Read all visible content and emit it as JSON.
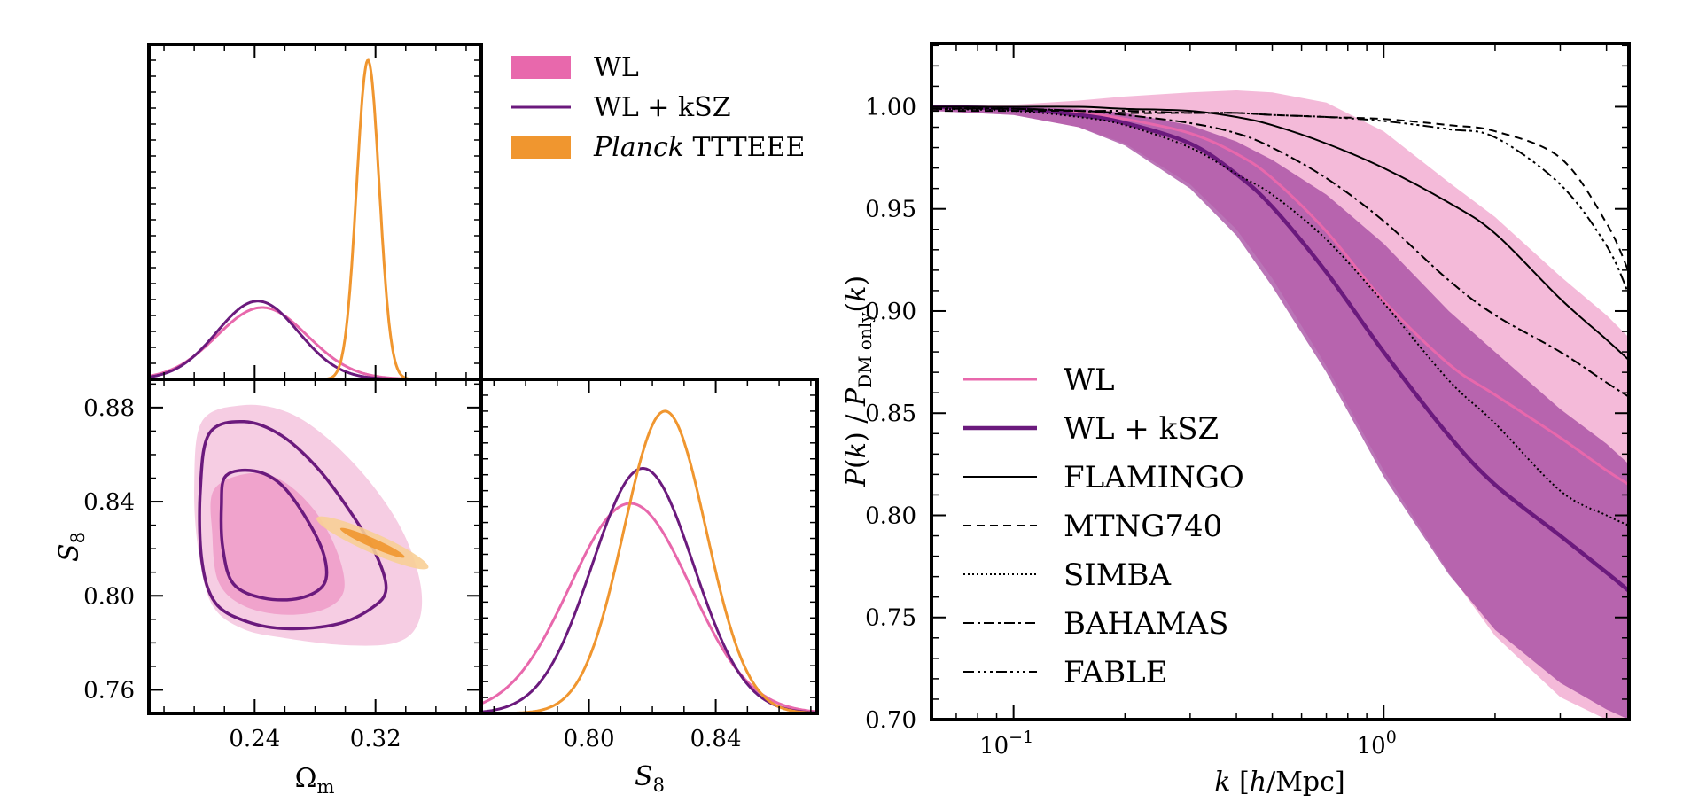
{
  "colors": {
    "wl": "#e868ac",
    "wl_fill": "#f0a3cc",
    "wl_fill_light": "#f6cde3",
    "wlksz": "#6b1a7d",
    "wlksz_fill": "#a3479f",
    "wlksz_fill_light": "#c48ac1",
    "planck": "#f0962f",
    "planck_fill_light": "#f8cf96",
    "black": "#000000"
  },
  "chart_data": [
    {
      "type": "line",
      "panel": "omega_m-marginal",
      "xlim": [
        0.17,
        0.39
      ],
      "xticks_major": [
        0.24,
        0.32
      ],
      "ylim": [
        0,
        1.05
      ],
      "series": [
        {
          "name": "WL",
          "color": "wl",
          "kind": "gaussian",
          "mu": 0.245,
          "sigma": 0.03,
          "amp": 0.225
        },
        {
          "name": "WL + kSZ",
          "color": "wlksz",
          "kind": "gaussian",
          "mu": 0.242,
          "sigma": 0.027,
          "amp": 0.245
        },
        {
          "name": "Planck TTTEEE",
          "color": "planck",
          "kind": "gaussian",
          "mu": 0.315,
          "sigma": 0.0075,
          "amp": 1.0
        }
      ]
    },
    {
      "type": "contour",
      "panel": "omega_m-s8",
      "xlabel": "Ωm",
      "ylabel": "S8",
      "xlim": [
        0.17,
        0.39
      ],
      "ylim": [
        0.75,
        0.892
      ],
      "xticks": [
        0.24,
        0.32
      ],
      "yticks": [
        0.76,
        0.8,
        0.84,
        0.88
      ],
      "ytick_labels": [
        "0.76",
        "0.80",
        "0.84",
        "0.88"
      ],
      "contours": [
        {
          "name": "WL 95%",
          "color": "wl_fill_light",
          "mode": "fill",
          "points": [
            [
              0.205,
              0.874
            ],
            [
              0.232,
              0.881
            ],
            [
              0.262,
              0.878
            ],
            [
              0.29,
              0.866
            ],
            [
              0.318,
              0.847
            ],
            [
              0.339,
              0.826
            ],
            [
              0.35,
              0.804
            ],
            [
              0.348,
              0.788
            ],
            [
              0.333,
              0.78
            ],
            [
              0.3,
              0.779
            ],
            [
              0.26,
              0.782
            ],
            [
              0.232,
              0.786
            ],
            [
              0.212,
              0.796
            ],
            [
              0.203,
              0.818
            ],
            [
              0.2,
              0.846
            ]
          ]
        },
        {
          "name": "WL 68%",
          "color": "wl_fill",
          "mode": "fill",
          "points": [
            [
              0.213,
              0.845
            ],
            [
              0.236,
              0.852
            ],
            [
              0.258,
              0.849
            ],
            [
              0.28,
              0.836
            ],
            [
              0.295,
              0.818
            ],
            [
              0.299,
              0.802
            ],
            [
              0.285,
              0.794
            ],
            [
              0.258,
              0.792
            ],
            [
              0.232,
              0.796
            ],
            [
              0.216,
              0.806
            ],
            [
              0.212,
              0.826
            ]
          ]
        },
        {
          "name": "WL + kSZ 95%",
          "color": "wlksz",
          "mode": "line",
          "points": [
            [
              0.21,
              0.869
            ],
            [
              0.233,
              0.874
            ],
            [
              0.258,
              0.868
            ],
            [
              0.282,
              0.854
            ],
            [
              0.303,
              0.836
            ],
            [
              0.32,
              0.818
            ],
            [
              0.327,
              0.803
            ],
            [
              0.318,
              0.795
            ],
            [
              0.295,
              0.788
            ],
            [
              0.262,
              0.786
            ],
            [
              0.235,
              0.789
            ],
            [
              0.214,
              0.797
            ],
            [
              0.205,
              0.815
            ],
            [
              0.204,
              0.845
            ]
          ]
        },
        {
          "name": "WL + kSZ 68%",
          "color": "wlksz",
          "mode": "line",
          "points": [
            [
              0.221,
              0.851
            ],
            [
              0.24,
              0.853
            ],
            [
              0.258,
              0.847
            ],
            [
              0.275,
              0.832
            ],
            [
              0.286,
              0.817
            ],
            [
              0.286,
              0.805
            ],
            [
              0.27,
              0.799
            ],
            [
              0.246,
              0.799
            ],
            [
              0.226,
              0.805
            ],
            [
              0.219,
              0.82
            ],
            [
              0.218,
              0.838
            ]
          ]
        },
        {
          "name": "Planck 95%",
          "color": "planck_fill_light",
          "mode": "ellipse",
          "cx": 0.318,
          "cy": 0.8225,
          "w": 0.052,
          "h": 0.013,
          "angle": -66
        },
        {
          "name": "Planck 68%",
          "color": "planck",
          "mode": "ellipse",
          "cx": 0.318,
          "cy": 0.8225,
          "w": 0.03,
          "h": 0.006,
          "angle": -66
        }
      ]
    },
    {
      "type": "line",
      "panel": "s8-marginal",
      "xlabel": "S8",
      "xlim": [
        0.766,
        0.872
      ],
      "xticks": [
        0.8,
        0.84
      ],
      "ylim": [
        0,
        1.05
      ],
      "series": [
        {
          "name": "WL",
          "color": "wl",
          "kind": "gaussian",
          "mu": 0.813,
          "sigma": 0.019,
          "amp": 0.66
        },
        {
          "name": "WL + kSZ",
          "color": "wlksz",
          "kind": "gaussian",
          "mu": 0.817,
          "sigma": 0.016,
          "amp": 0.77
        },
        {
          "name": "Planck TTTEEE",
          "color": "planck",
          "kind": "gaussian",
          "mu": 0.824,
          "sigma": 0.013,
          "amp": 0.95
        }
      ]
    },
    {
      "type": "area",
      "panel": "power-suppression",
      "xlabel": "k [h/Mpc]",
      "ylabel": "P(k) / P_DM only(k)",
      "xscale": "log",
      "xlim": [
        0.06,
        4.6
      ],
      "ylim": [
        0.7,
        1.031
      ],
      "xticks": [
        0.1,
        1.0
      ],
      "xtick_labels": [
        "10",
        "10"
      ],
      "xtick_exponents": [
        "−1",
        "0"
      ],
      "yticks": [
        0.7,
        0.75,
        0.8,
        0.85,
        0.9,
        0.95,
        1.0
      ],
      "ytick_labels": [
        "0.70",
        "0.75",
        "0.80",
        "0.85",
        "0.90",
        "0.95",
        "1.00"
      ],
      "x": [
        0.06,
        0.1,
        0.15,
        0.2,
        0.3,
        0.4,
        0.5,
        0.7,
        1.0,
        1.5,
        2.0,
        3.0,
        4.0,
        4.6
      ],
      "bands": [
        {
          "name": "WL band",
          "color": "wl_fill",
          "upper": [
            1.0,
            1.001,
            1.003,
            1.005,
            1.007,
            1.008,
            1.007,
            1.002,
            0.988,
            0.963,
            0.946,
            0.917,
            0.898,
            0.887
          ],
          "lower": [
            0.998,
            0.996,
            0.99,
            0.982,
            0.962,
            0.94,
            0.916,
            0.873,
            0.822,
            0.772,
            0.741,
            0.711,
            0.7,
            0.7
          ]
        },
        {
          "name": "WL + kSZ band",
          "color": "wlksz_fill",
          "upper": [
            1.0,
            1.0,
            0.999,
            0.997,
            0.991,
            0.983,
            0.974,
            0.957,
            0.933,
            0.9,
            0.88,
            0.852,
            0.835,
            0.825
          ],
          "lower": [
            0.998,
            0.996,
            0.99,
            0.981,
            0.96,
            0.937,
            0.912,
            0.87,
            0.819,
            0.771,
            0.744,
            0.718,
            0.705,
            0.7
          ]
        }
      ],
      "series": [
        {
          "name": "WL",
          "color": "wl",
          "width": 3,
          "dash": "",
          "y": [
            1.0,
            0.999,
            0.997,
            0.994,
            0.987,
            0.977,
            0.965,
            0.939,
            0.905,
            0.874,
            0.859,
            0.838,
            0.822,
            0.815
          ]
        },
        {
          "name": "WL + kSZ",
          "color": "wlksz",
          "width": 4.5,
          "dash": "",
          "y": [
            1.0,
            0.999,
            0.996,
            0.992,
            0.982,
            0.967,
            0.951,
            0.919,
            0.88,
            0.839,
            0.815,
            0.79,
            0.772,
            0.763
          ]
        },
        {
          "name": "FLAMINGO",
          "color": "black",
          "width": 2,
          "dash": "",
          "y": [
            1.0,
            1.0,
            1.0,
            0.999,
            0.998,
            0.995,
            0.991,
            0.982,
            0.97,
            0.953,
            0.938,
            0.906,
            0.886,
            0.876
          ]
        },
        {
          "name": "MTNG740",
          "color": "black",
          "width": 2,
          "dash": "9,6",
          "y": [
            0.998,
            0.998,
            0.998,
            0.997,
            0.997,
            0.997,
            0.996,
            0.995,
            0.994,
            0.991,
            0.988,
            0.975,
            0.943,
            0.919
          ]
        },
        {
          "name": "SIMBA",
          "color": "black",
          "width": 2,
          "dash": "2,3",
          "y": [
            0.999,
            0.998,
            0.995,
            0.991,
            0.98,
            0.967,
            0.957,
            0.935,
            0.904,
            0.866,
            0.845,
            0.812,
            0.8,
            0.795
          ]
        },
        {
          "name": "BAHAMAS",
          "color": "black",
          "width": 2,
          "dash": "12,4,3,4",
          "y": [
            0.999,
            0.999,
            0.998,
            0.996,
            0.992,
            0.987,
            0.98,
            0.965,
            0.944,
            0.915,
            0.898,
            0.88,
            0.865,
            0.858
          ]
        },
        {
          "name": "FABLE",
          "color": "black",
          "width": 2,
          "dash": "12,4,3,4,3,4,3,4",
          "y": [
            0.999,
            0.999,
            0.998,
            0.998,
            0.997,
            0.997,
            0.996,
            0.995,
            0.993,
            0.989,
            0.985,
            0.962,
            0.932,
            0.908
          ]
        }
      ]
    }
  ],
  "legend_left": [
    {
      "label": "WL",
      "type": "patch",
      "color": "wl"
    },
    {
      "label": "WL + kSZ",
      "type": "line",
      "color": "wlksz"
    },
    {
      "label_italic": "Planck",
      "label_rest": " TTTEEE",
      "type": "patch",
      "color": "planck"
    }
  ],
  "legend_right": [
    {
      "label": "WL",
      "color": "wl",
      "width": 3,
      "dash": ""
    },
    {
      "label": "WL + kSZ",
      "color": "wlksz",
      "width": 4.5,
      "dash": ""
    },
    {
      "label": "FLAMINGO",
      "color": "black",
      "width": 2,
      "dash": ""
    },
    {
      "label": "MTNG740",
      "color": "black",
      "width": 2,
      "dash": "9,6"
    },
    {
      "label": "SIMBA",
      "color": "black",
      "width": 2,
      "dash": "2,3"
    },
    {
      "label": "BAHAMAS",
      "color": "black",
      "width": 2,
      "dash": "12,4,3,4"
    },
    {
      "label": "FABLE",
      "color": "black",
      "width": 2,
      "dash": "12,4,3,4,3,4,3,4"
    }
  ]
}
